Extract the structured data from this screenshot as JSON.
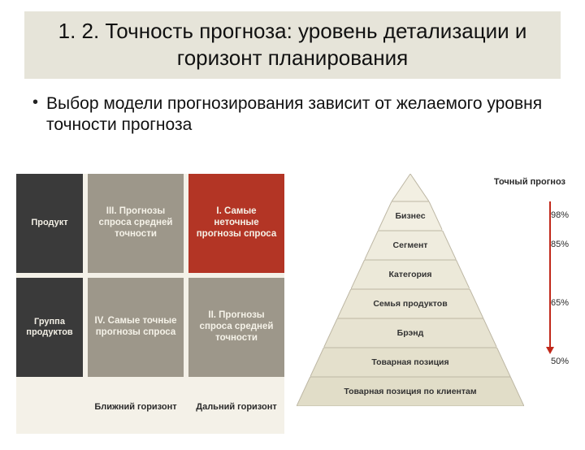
{
  "title": "1. 2. Точность прогноза: уровень детализации и горизонт планирования",
  "bullet": "Выбор модели прогнозирования зависит от желаемого уровня точности прогноза",
  "matrix": {
    "bg": "#f4f1e8",
    "row_head_bg": "#3a3a3a",
    "cell_bg": "#9d978a",
    "cell_red_bg": "#b33525",
    "rows": [
      {
        "head": "Продукт",
        "cells": [
          {
            "text": "III. Прогнозы спроса средней точности",
            "red": false
          },
          {
            "text": "I. Самые неточные прогнозы спроса",
            "red": true
          }
        ]
      },
      {
        "head": "Группа продуктов",
        "cells": [
          {
            "text": "IV. Самые точные прогнозы спроса",
            "red": false
          },
          {
            "text": "II. Прогнозы спроса средней точности",
            "red": false
          }
        ]
      }
    ],
    "col_heads": [
      "Ближний горизонт",
      "Дальний горизонт"
    ]
  },
  "pyramid": {
    "legend": "Точный прогноз",
    "arrow_color": "#c1281a",
    "fill_top": "#f2efe2",
    "fill_bottom": "#e1ddc8",
    "stroke": "#bdb7a4",
    "tiers": [
      {
        "label": "Бизнес",
        "pct": "98%"
      },
      {
        "label": "Сегмент",
        "pct": "85%"
      },
      {
        "label": "Категория",
        "pct": ""
      },
      {
        "label": "Семья продуктов",
        "pct": "65%"
      },
      {
        "label": "Брэнд",
        "pct": ""
      },
      {
        "label": "Товарная позиция",
        "pct": "50%"
      },
      {
        "label": "Товарная позиция по клиентам",
        "pct": ""
      }
    ],
    "apex_h": 34,
    "tier_h": 36,
    "base_w": 280,
    "top_w": 46
  }
}
